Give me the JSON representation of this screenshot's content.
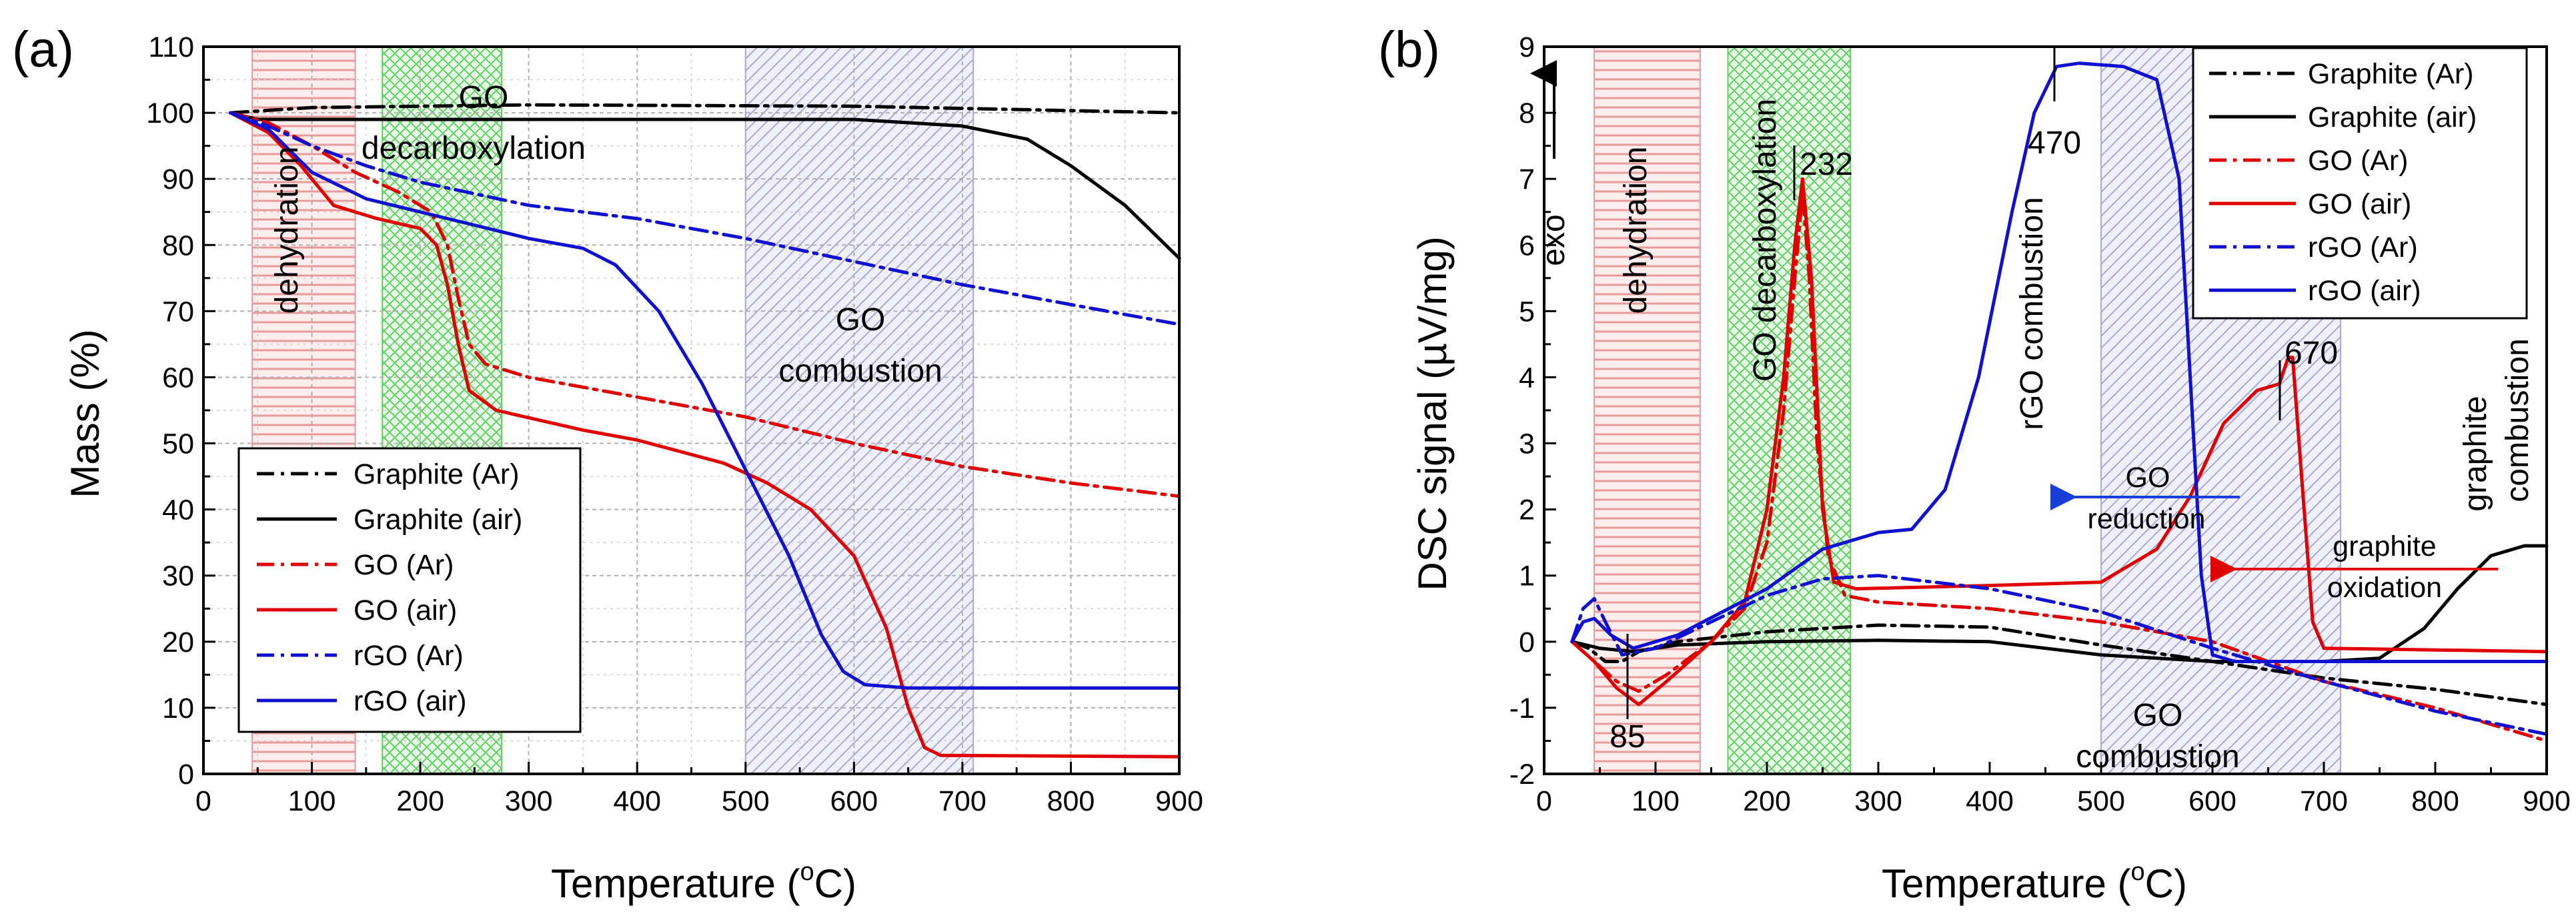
{
  "chart_data": [
    {
      "panel": "(a)",
      "type": "line",
      "xlabel": "Temperature (°C)",
      "ylabel": "Mass (%)",
      "xlim": [
        0,
        900
      ],
      "ylim": [
        0,
        110
      ],
      "xticks": [
        0,
        100,
        200,
        300,
        400,
        500,
        600,
        700,
        800,
        900
      ],
      "yticks": [
        0,
        10,
        20,
        30,
        40,
        50,
        60,
        70,
        80,
        90,
        100,
        110
      ],
      "grid": true,
      "legend_position": "bottom-left",
      "bands": [
        {
          "name": "dehydration",
          "x": [
            45,
            140
          ],
          "color": "#e8a0a0",
          "label": "dehydration"
        },
        {
          "name": "decarboxylation",
          "x": [
            165,
            275
          ],
          "color": "#40c040",
          "label": "GO decarboxylation"
        },
        {
          "name": "combustion",
          "x": [
            500,
            710
          ],
          "color": "#9090c8",
          "label": "GO combustion"
        }
      ],
      "series": [
        {
          "name": "Graphite (Ar)",
          "color": "#000000",
          "dash": "dashdot",
          "points": [
            [
              25,
              100
            ],
            [
              100,
              100.8
            ],
            [
              300,
              101.2
            ],
            [
              600,
              101
            ],
            [
              900,
              100
            ]
          ]
        },
        {
          "name": "Graphite (air)",
          "color": "#000000",
          "dash": "solid",
          "points": [
            [
              25,
              100
            ],
            [
              50,
              99
            ],
            [
              100,
              99
            ],
            [
              300,
              99
            ],
            [
              600,
              99
            ],
            [
              700,
              98
            ],
            [
              760,
              96
            ],
            [
              800,
              92
            ],
            [
              850,
              86
            ],
            [
              900,
              78
            ]
          ]
        },
        {
          "name": "GO (Ar)",
          "color": "#e00000",
          "dash": "dashdot",
          "points": [
            [
              25,
              100
            ],
            [
              60,
              98.5
            ],
            [
              100,
              95
            ],
            [
              140,
              91
            ],
            [
              180,
              88
            ],
            [
              210,
              85
            ],
            [
              225,
              80
            ],
            [
              235,
              72
            ],
            [
              245,
              65
            ],
            [
              260,
              62
            ],
            [
              300,
              60
            ],
            [
              400,
              57
            ],
            [
              500,
              54
            ],
            [
              600,
              50
            ],
            [
              700,
              46.5
            ],
            [
              800,
              44
            ],
            [
              900,
              42
            ]
          ]
        },
        {
          "name": "GO (air)",
          "color": "#e00000",
          "dash": "solid",
          "points": [
            [
              25,
              100
            ],
            [
              60,
              97
            ],
            [
              90,
              92
            ],
            [
              120,
              86
            ],
            [
              160,
              84
            ],
            [
              200,
              82.5
            ],
            [
              215,
              80
            ],
            [
              225,
              74
            ],
            [
              235,
              65
            ],
            [
              245,
              58
            ],
            [
              270,
              55
            ],
            [
              350,
              52
            ],
            [
              400,
              50.5
            ],
            [
              480,
              47
            ],
            [
              520,
              44
            ],
            [
              560,
              40
            ],
            [
              600,
              33
            ],
            [
              630,
              22
            ],
            [
              650,
              10
            ],
            [
              665,
              4
            ],
            [
              680,
              2.8
            ],
            [
              900,
              2.6
            ]
          ]
        },
        {
          "name": "rGO (Ar)",
          "color": "#1010d0",
          "dash": "dashdot",
          "points": [
            [
              25,
              100
            ],
            [
              60,
              98
            ],
            [
              100,
              95
            ],
            [
              150,
              92
            ],
            [
              200,
              89.5
            ],
            [
              300,
              86
            ],
            [
              400,
              84
            ],
            [
              500,
              81
            ],
            [
              600,
              77.5
            ],
            [
              700,
              74
            ],
            [
              800,
              71
            ],
            [
              900,
              68
            ]
          ]
        },
        {
          "name": "rGO (air)",
          "color": "#1010d0",
          "dash": "solid",
          "points": [
            [
              25,
              100
            ],
            [
              60,
              97.5
            ],
            [
              100,
              91
            ],
            [
              150,
              87
            ],
            [
              200,
              85
            ],
            [
              250,
              83
            ],
            [
              300,
              81
            ],
            [
              350,
              79.5
            ],
            [
              380,
              77
            ],
            [
              420,
              70
            ],
            [
              460,
              59
            ],
            [
              500,
              46
            ],
            [
              540,
              33
            ],
            [
              570,
              21
            ],
            [
              590,
              15.5
            ],
            [
              610,
              13.5
            ],
            [
              650,
              13
            ],
            [
              900,
              13
            ]
          ]
        }
      ],
      "annotations": {
        "dehydration": "dehydration",
        "decarb_line1": "GO",
        "decarb_line2": "decarboxylation",
        "comb_line1": "GO",
        "comb_line2": "combustion"
      }
    },
    {
      "panel": "(b)",
      "type": "line",
      "xlabel": "Temperature (°C)",
      "ylabel": "DSC signal (µV/mg)",
      "xlim": [
        0,
        900
      ],
      "ylim": [
        -2,
        9
      ],
      "xticks": [
        0,
        100,
        200,
        300,
        400,
        500,
        600,
        700,
        800,
        900
      ],
      "yticks": [
        -2,
        -1,
        0,
        1,
        2,
        3,
        4,
        5,
        6,
        7,
        8,
        9
      ],
      "grid": false,
      "legend_position": "top-right",
      "bands": [
        {
          "name": "dehydration",
          "x": [
            45,
            140
          ],
          "color": "#e8a0a0"
        },
        {
          "name": "decarboxylation",
          "x": [
            165,
            275
          ],
          "color": "#40c040"
        },
        {
          "name": "combustion",
          "x": [
            500,
            715
          ],
          "color": "#9090c8"
        }
      ],
      "series": [
        {
          "name": "Graphite (Ar)",
          "color": "#000000",
          "dash": "dashdot",
          "points": [
            [
              25,
              0
            ],
            [
              40,
              -0.1
            ],
            [
              55,
              -0.3
            ],
            [
              70,
              -0.3
            ],
            [
              85,
              -0.15
            ],
            [
              120,
              0
            ],
            [
              200,
              0.15
            ],
            [
              300,
              0.25
            ],
            [
              400,
              0.22
            ],
            [
              500,
              -0.05
            ],
            [
              600,
              -0.3
            ],
            [
              700,
              -0.55
            ],
            [
              800,
              -0.72
            ],
            [
              900,
              -0.95
            ]
          ]
        },
        {
          "name": "Graphite (air)",
          "color": "#000000",
          "dash": "solid",
          "points": [
            [
              25,
              0
            ],
            [
              50,
              -0.1
            ],
            [
              80,
              -0.15
            ],
            [
              120,
              -0.05
            ],
            [
              200,
              0
            ],
            [
              300,
              0.02
            ],
            [
              400,
              0
            ],
            [
              500,
              -0.2
            ],
            [
              600,
              -0.3
            ],
            [
              700,
              -0.3
            ],
            [
              750,
              -0.25
            ],
            [
              790,
              0.2
            ],
            [
              820,
              0.8
            ],
            [
              850,
              1.3
            ],
            [
              880,
              1.45
            ],
            [
              900,
              1.45
            ]
          ]
        },
        {
          "name": "GO (Ar)",
          "color": "#e00000",
          "dash": "dashdot",
          "points": [
            [
              25,
              0
            ],
            [
              45,
              -0.3
            ],
            [
              65,
              -0.6
            ],
            [
              85,
              -0.75
            ],
            [
              110,
              -0.5
            ],
            [
              150,
              0
            ],
            [
              180,
              0.5
            ],
            [
              200,
              1.5
            ],
            [
              215,
              3.5
            ],
            [
              225,
              5.5
            ],
            [
              232,
              6.8
            ],
            [
              238,
              5.5
            ],
            [
              245,
              3
            ],
            [
              255,
              1.3
            ],
            [
              270,
              0.7
            ],
            [
              300,
              0.6
            ],
            [
              400,
              0.5
            ],
            [
              500,
              0.3
            ],
            [
              600,
              0
            ],
            [
              700,
              -0.6
            ],
            [
              800,
              -1.0
            ],
            [
              900,
              -1.5
            ]
          ]
        },
        {
          "name": "GO (air)",
          "color": "#e00000",
          "dash": "solid",
          "points": [
            [
              25,
              0
            ],
            [
              45,
              -0.3
            ],
            [
              65,
              -0.7
            ],
            [
              85,
              -0.95
            ],
            [
              110,
              -0.6
            ],
            [
              150,
              0
            ],
            [
              180,
              0.6
            ],
            [
              200,
              2
            ],
            [
              215,
              4
            ],
            [
              225,
              6
            ],
            [
              232,
              7
            ],
            [
              240,
              5.5
            ],
            [
              250,
              2
            ],
            [
              260,
              0.9
            ],
            [
              280,
              0.8
            ],
            [
              400,
              0.85
            ],
            [
              500,
              0.9
            ],
            [
              550,
              1.4
            ],
            [
              580,
              2.2
            ],
            [
              610,
              3.3
            ],
            [
              640,
              3.8
            ],
            [
              660,
              3.9
            ],
            [
              668,
              4.3
            ],
            [
              672,
              4.3
            ],
            [
              680,
              2.5
            ],
            [
              690,
              0.3
            ],
            [
              700,
              -0.1
            ],
            [
              900,
              -0.15
            ]
          ]
        },
        {
          "name": "rGO (Ar)",
          "color": "#1010d0",
          "dash": "dashdot",
          "points": [
            [
              25,
              0
            ],
            [
              35,
              0.5
            ],
            [
              45,
              0.65
            ],
            [
              55,
              0.3
            ],
            [
              70,
              -0.2
            ],
            [
              100,
              -0.1
            ],
            [
              150,
              0.3
            ],
            [
              200,
              0.7
            ],
            [
              250,
              0.95
            ],
            [
              300,
              1
            ],
            [
              400,
              0.8
            ],
            [
              500,
              0.45
            ],
            [
              600,
              -0.1
            ],
            [
              700,
              -0.6
            ],
            [
              800,
              -1.05
            ],
            [
              900,
              -1.4
            ]
          ]
        },
        {
          "name": "rGO (air)",
          "color": "#1010d0",
          "dash": "solid",
          "points": [
            [
              25,
              0
            ],
            [
              35,
              0.3
            ],
            [
              45,
              0.35
            ],
            [
              60,
              0.1
            ],
            [
              80,
              -0.1
            ],
            [
              120,
              0.1
            ],
            [
              200,
              0.8
            ],
            [
              250,
              1.4
            ],
            [
              300,
              1.65
            ],
            [
              330,
              1.7
            ],
            [
              360,
              2.3
            ],
            [
              390,
              4
            ],
            [
              420,
              6.5
            ],
            [
              440,
              8
            ],
            [
              460,
              8.7
            ],
            [
              480,
              8.75
            ],
            [
              520,
              8.7
            ],
            [
              550,
              8.5
            ],
            [
              570,
              7
            ],
            [
              580,
              4
            ],
            [
              590,
              1
            ],
            [
              600,
              -0.2
            ],
            [
              620,
              -0.3
            ],
            [
              900,
              -0.3
            ]
          ]
        }
      ],
      "annotations": {
        "exo": "exo",
        "dehydration": "dehydration",
        "decarboxylation": "GO decarboxylation",
        "rgo_combustion": "rGO combustion",
        "go_comb_line1": "GO",
        "go_comb_line2": "combustion",
        "go_reduction_line1": "GO",
        "go_reduction_line2": "reduction",
        "graphite_oxidation_line1": "graphite",
        "graphite_oxidation_line2": "oxidation",
        "graphite_combustion_line1": "graphite",
        "graphite_combustion_line2": "combustion",
        "peak_232": "232",
        "peak_470": "470",
        "peak_670": "670",
        "peak_85": "85"
      }
    }
  ]
}
